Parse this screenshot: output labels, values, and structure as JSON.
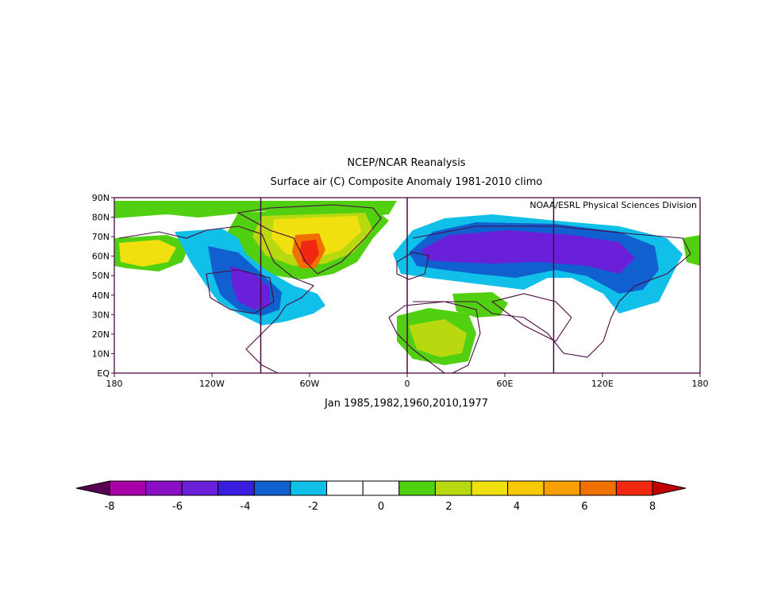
{
  "title_line1": "NCEP/NCAR Reanalysis",
  "title_line2": "Surface air (C) Composite Anomaly 1981-2010 climo",
  "credit": "NOAA/ESRL Physical Sciences Division",
  "subtitle": "Jan 1985,1982,1960,2010,1977",
  "map": {
    "lon_labels": [
      "180",
      "120W",
      "60W",
      "0",
      "60E",
      "120E",
      "180"
    ],
    "lat_labels": [
      "EQ",
      "10N",
      "20N",
      "30N",
      "40N",
      "50N",
      "60N",
      "70N",
      "80N",
      "90N"
    ],
    "divider_lons": [
      -90,
      0,
      90
    ]
  },
  "colorbar": {
    "labels": [
      "-8",
      "-6",
      "-4",
      "-2",
      "0",
      "2",
      "4",
      "6",
      "8"
    ],
    "colors": [
      "#5a0050",
      "#a800a8",
      "#8a10c8",
      "#6a20d8",
      "#3a1ee0",
      "#1060d0",
      "#10c0e8",
      "#ffffff",
      "#ffffff",
      "#50d010",
      "#b8d810",
      "#f0e010",
      "#f8c800",
      "#f8a000",
      "#f07000",
      "#f02810",
      "#c00000"
    ]
  }
}
